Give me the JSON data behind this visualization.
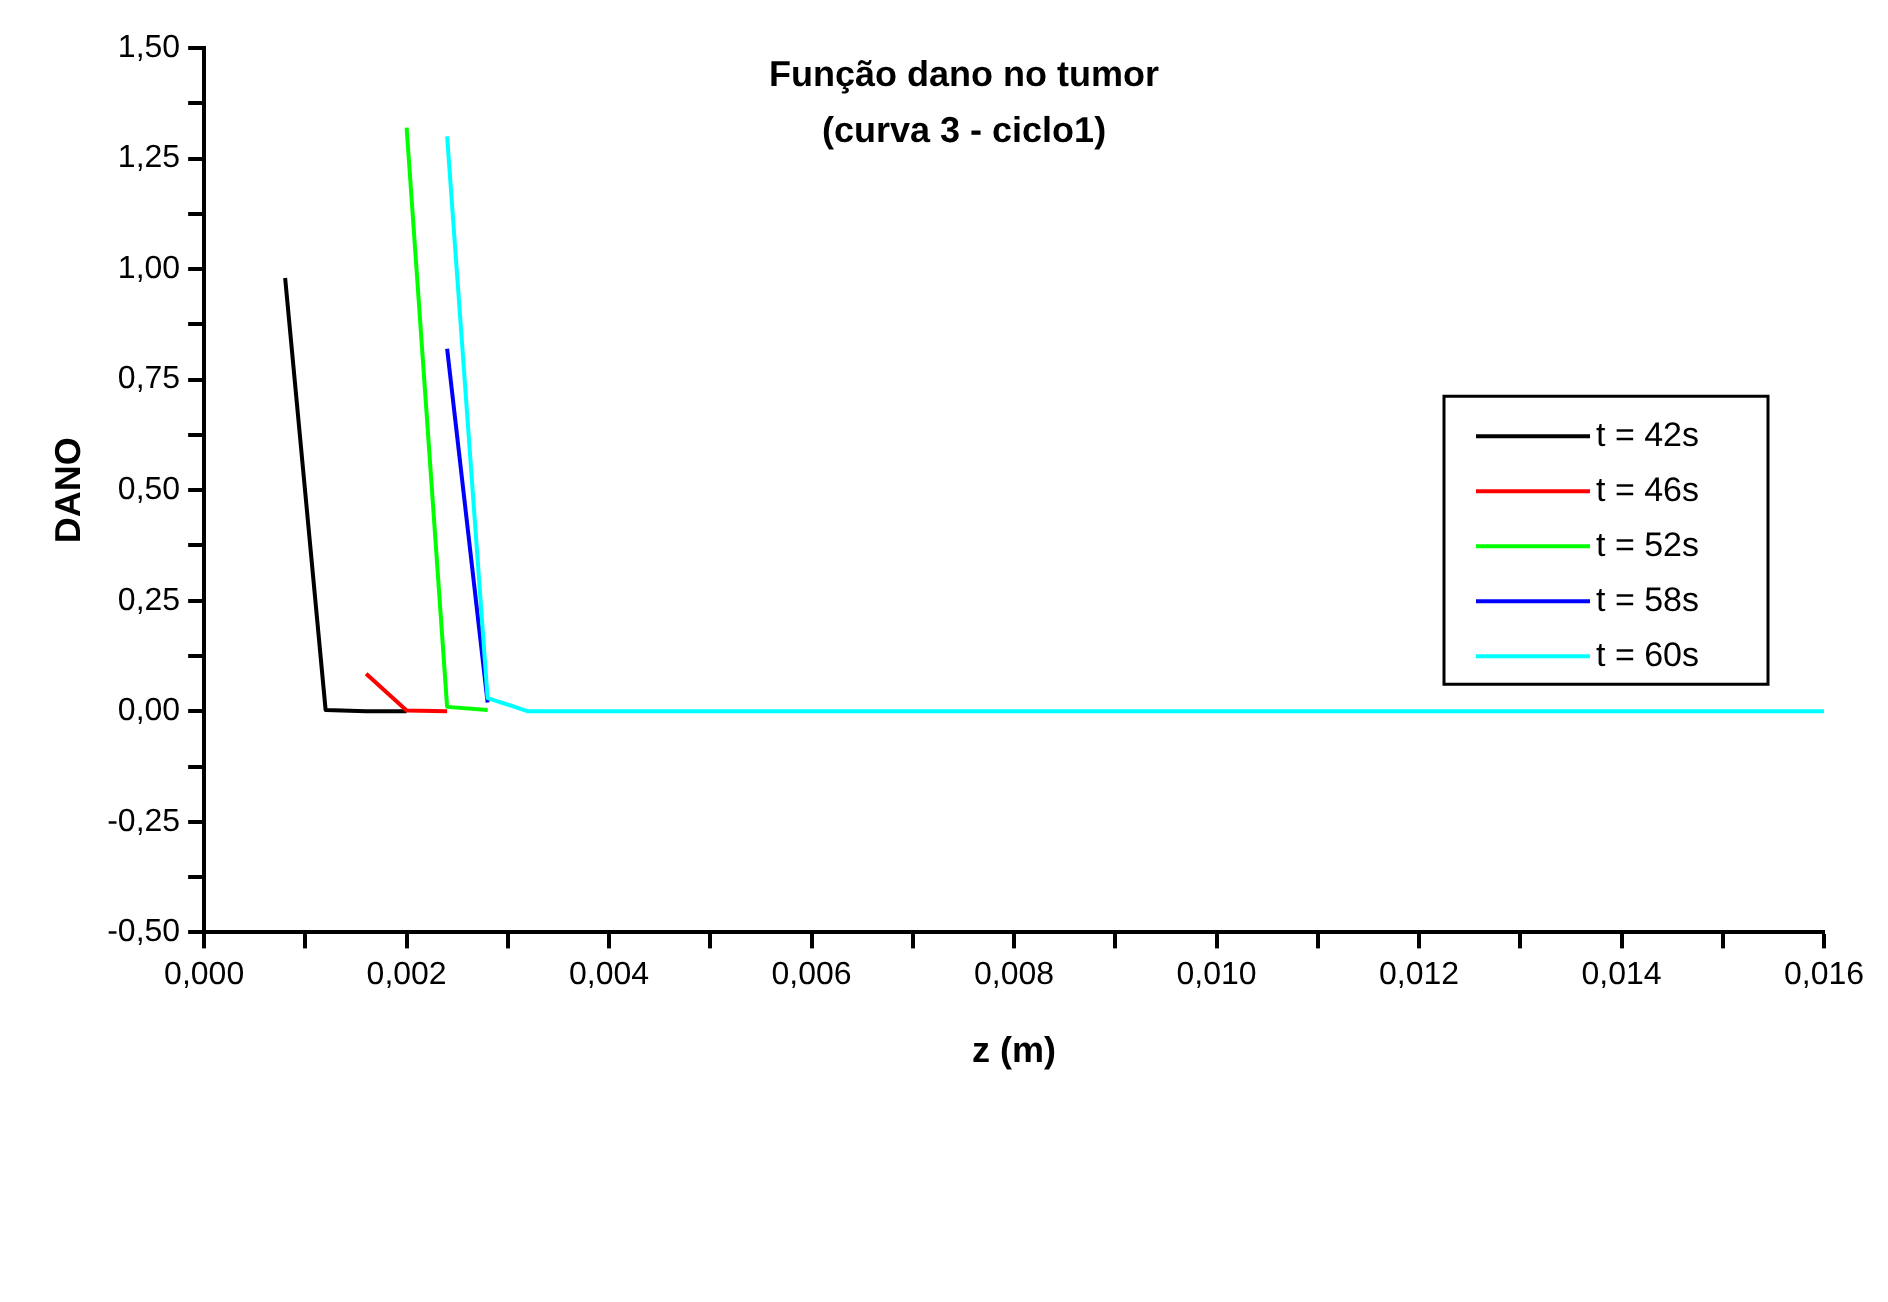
{
  "chart_data": {
    "type": "line",
    "title": "Função dano no tumor",
    "subtitle": "(curva 3 - ciclo1)",
    "xlabel": "z (m)",
    "ylabel": "DANO",
    "xlim": [
      0,
      0.016
    ],
    "xticks": [
      {
        "value": 0,
        "label": "0,000"
      },
      {
        "value": 0.001,
        "label": null
      },
      {
        "value": 0.002,
        "label": "0,002"
      },
      {
        "value": 0.003,
        "label": null
      },
      {
        "value": 0.004,
        "label": "0,004"
      },
      {
        "value": 0.005,
        "label": null
      },
      {
        "value": 0.006,
        "label": "0,006"
      },
      {
        "value": 0.007,
        "label": null
      },
      {
        "value": 0.008,
        "label": "0,008"
      },
      {
        "value": 0.009,
        "label": null
      },
      {
        "value": 0.01,
        "label": "0,010"
      },
      {
        "value": 0.011,
        "label": null
      },
      {
        "value": 0.012,
        "label": "0,012"
      },
      {
        "value": 0.013,
        "label": null
      },
      {
        "value": 0.014,
        "label": "0,014"
      },
      {
        "value": 0.015,
        "label": null
      },
      {
        "value": 0.016,
        "label": "0,016"
      }
    ],
    "ylim": [
      -0.5,
      1.5
    ],
    "yticks": [
      {
        "value": -0.5,
        "label": "-0,50"
      },
      {
        "value": -0.375,
        "label": null
      },
      {
        "value": -0.25,
        "label": "-0,25"
      },
      {
        "value": -0.125,
        "label": null
      },
      {
        "value": 0,
        "label": "0,00"
      },
      {
        "value": 0.125,
        "label": null
      },
      {
        "value": 0.25,
        "label": "0,25"
      },
      {
        "value": 0.375,
        "label": null
      },
      {
        "value": 0.5,
        "label": "0,50"
      },
      {
        "value": 0.625,
        "label": null
      },
      {
        "value": 0.75,
        "label": "0,75"
      },
      {
        "value": 0.875,
        "label": null
      },
      {
        "value": 1,
        "label": "1,00"
      },
      {
        "value": 1.125,
        "label": null
      },
      {
        "value": 1.25,
        "label": "1,25"
      },
      {
        "value": 1.375,
        "label": null
      },
      {
        "value": 1.5,
        "label": "1,50"
      }
    ],
    "grid": false,
    "legend": "right",
    "marker": "none",
    "line_style": "solid",
    "series": [
      {
        "name": "t = 42s",
        "color": "#000000",
        "x": [
          0.0008,
          0.0012,
          0.0016,
          0.002
        ],
        "values": [
          0.98,
          0.003,
          0,
          0
        ]
      },
      {
        "name": "t = 46s",
        "color": "#ff0000",
        "x": [
          0.0016,
          0.002,
          0.0024
        ],
        "values": [
          0.085,
          0.002,
          0
        ]
      },
      {
        "name": "t = 52s",
        "color": "#00ff00",
        "x": [
          0.002,
          0.0024,
          0.0028
        ],
        "values": [
          1.32,
          0.01,
          0.003
        ]
      },
      {
        "name": "t = 58s",
        "color": "#0000ff",
        "x": [
          0.0024,
          0.0028
        ],
        "values": [
          0.82,
          0.02
        ]
      },
      {
        "name": "t = 60s",
        "color": "#00ffff",
        "x": [
          0.0024,
          0.0028,
          0.0032,
          0.016
        ],
        "values": [
          1.3,
          0.03,
          0,
          0
        ]
      }
    ]
  }
}
